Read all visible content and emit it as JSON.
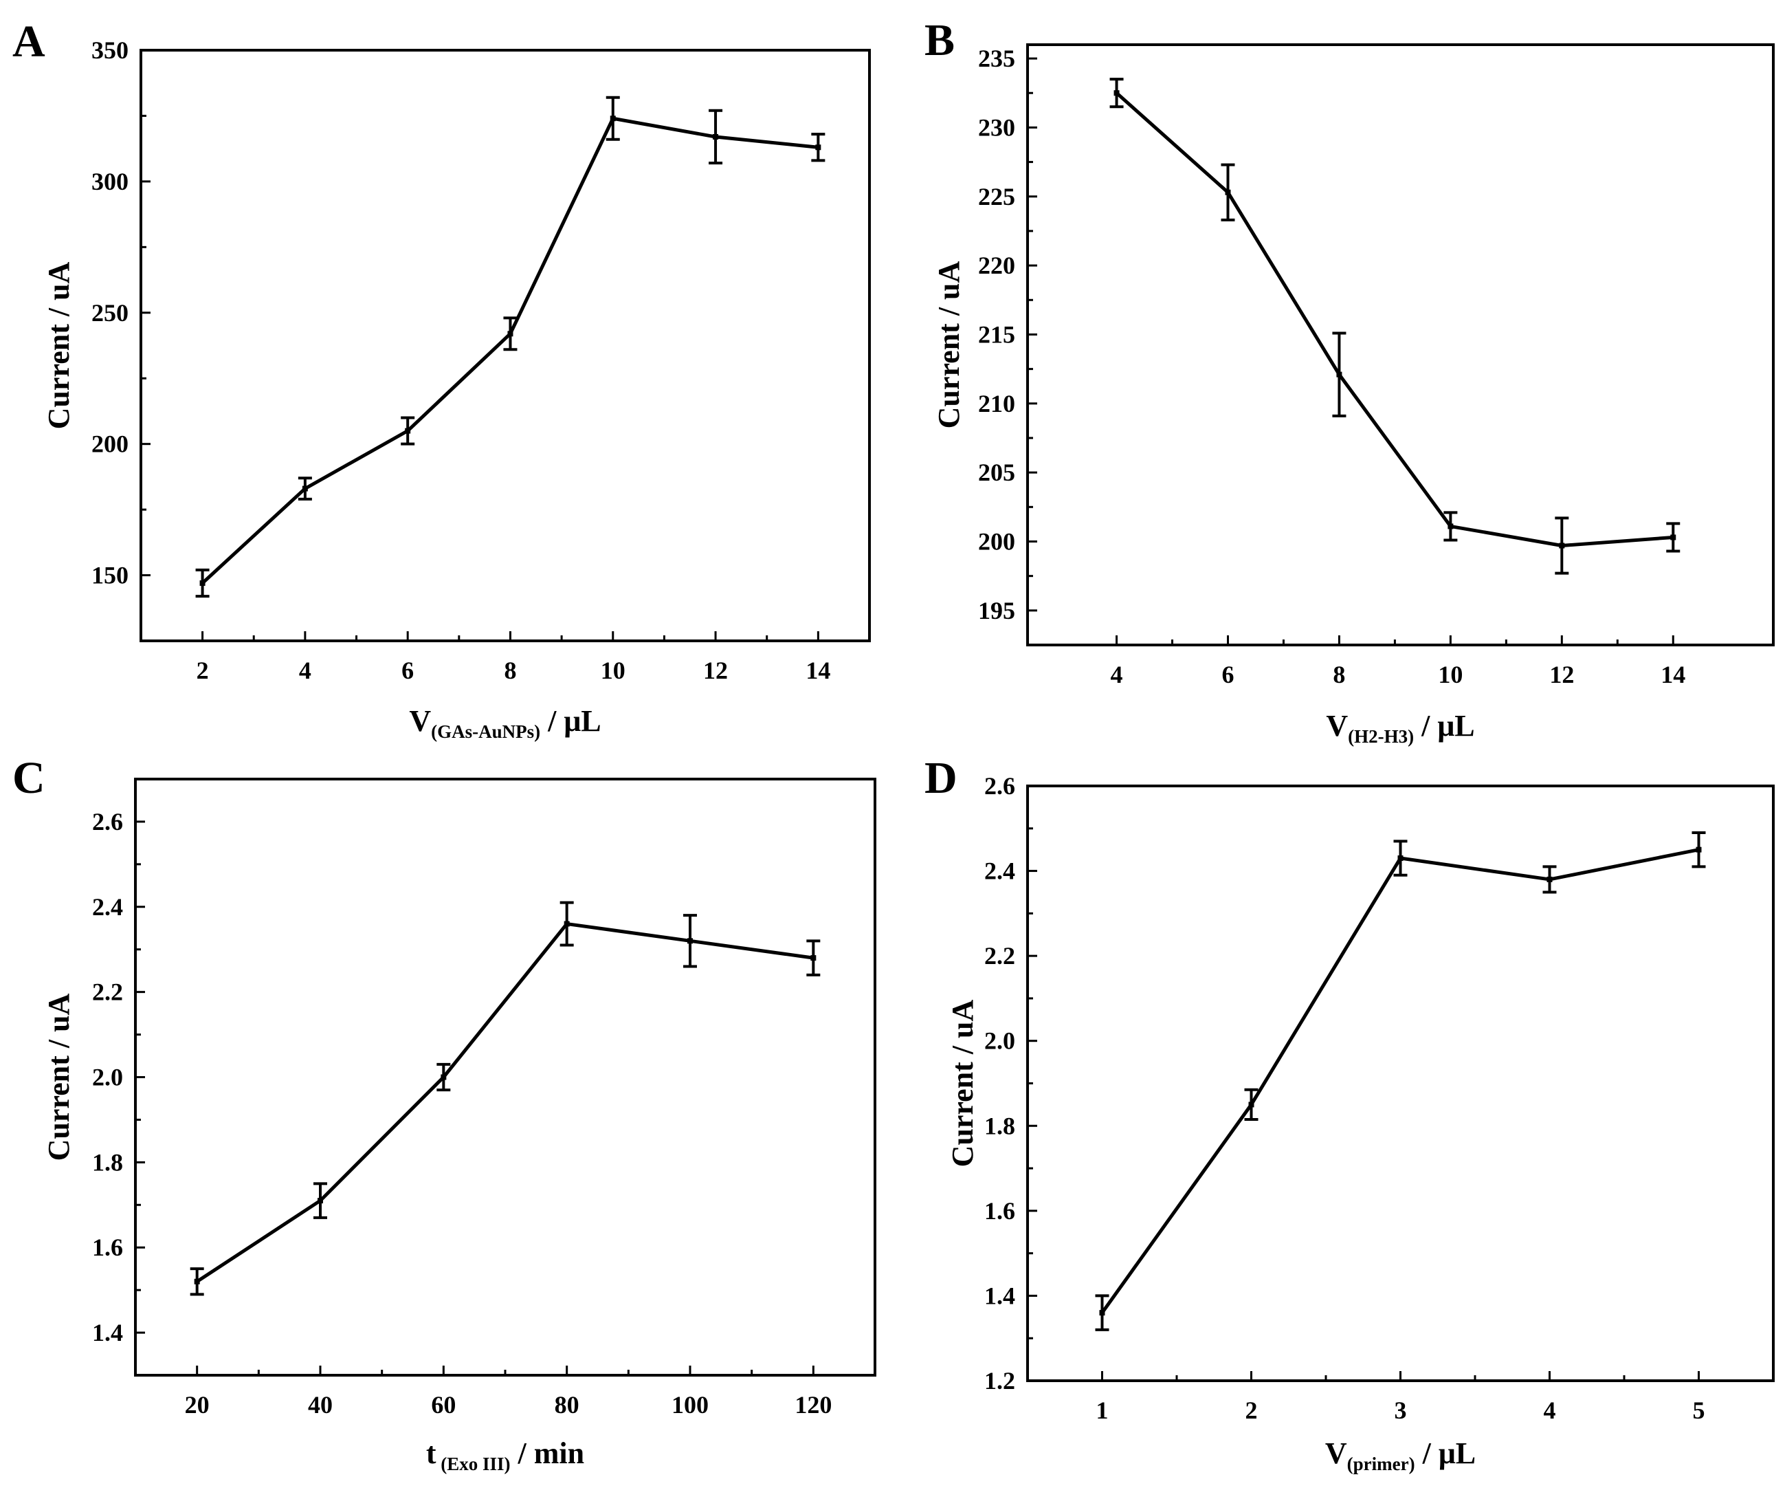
{
  "figure": {
    "panels": [
      "A",
      "B",
      "C",
      "D"
    ]
  },
  "chart_data": [
    {
      "panel": "A",
      "type": "line",
      "x": [
        2,
        4,
        6,
        8,
        10,
        12,
        14
      ],
      "y": [
        147,
        183,
        205,
        242,
        324,
        317,
        313
      ],
      "yerr": [
        5,
        4,
        5,
        6,
        8,
        10,
        5
      ],
      "xlim": [
        0.8,
        15
      ],
      "ylim": [
        125,
        350
      ],
      "xticks": [
        2,
        4,
        6,
        8,
        10,
        12,
        14
      ],
      "xtick_labels": [
        "2",
        "4",
        "6",
        "8",
        "10",
        "12",
        "14"
      ],
      "yticks": [
        150,
        200,
        250,
        300,
        350
      ],
      "ytick_labels": [
        "150",
        "200",
        "250",
        "300",
        "350"
      ],
      "ylabel": "Current / uA",
      "xlabel_main": "V",
      "xlabel_sub": "(GAs-AuNPs)",
      "xlabel_unit": " / μL"
    },
    {
      "panel": "B",
      "type": "line",
      "x": [
        4,
        6,
        8,
        10,
        12,
        14
      ],
      "y": [
        232.5,
        225.3,
        212.1,
        201.1,
        199.7,
        200.3
      ],
      "yerr": [
        1.0,
        2.0,
        3.0,
        1.0,
        2.0,
        1.0
      ],
      "xlim": [
        2.4,
        15.8
      ],
      "ylim": [
        192.5,
        236
      ],
      "xticks": [
        4,
        6,
        8,
        10,
        12,
        14
      ],
      "xtick_labels": [
        "4",
        "6",
        "8",
        "10",
        "12",
        "14"
      ],
      "yticks": [
        195,
        200,
        205,
        210,
        215,
        220,
        225,
        230,
        235
      ],
      "ytick_labels": [
        "195",
        "200",
        "205",
        "210",
        "215",
        "220",
        "225",
        "230",
        "235"
      ],
      "ylabel": "Current / uA",
      "xlabel_main": "V",
      "xlabel_sub": "(H2-H3)",
      "xlabel_unit": " / μL"
    },
    {
      "panel": "C",
      "type": "line",
      "x": [
        20,
        40,
        60,
        80,
        100,
        120
      ],
      "y": [
        1.52,
        1.71,
        2.0,
        2.36,
        2.32,
        2.28
      ],
      "yerr": [
        0.03,
        0.04,
        0.03,
        0.05,
        0.06,
        0.04
      ],
      "xlim": [
        10,
        130
      ],
      "ylim": [
        1.3,
        2.7
      ],
      "xticks": [
        20,
        40,
        60,
        80,
        100,
        120
      ],
      "xtick_labels": [
        "20",
        "40",
        "60",
        "80",
        "100",
        "120"
      ],
      "yticks": [
        1.4,
        1.6,
        1.8,
        2.0,
        2.2,
        2.4,
        2.6
      ],
      "ytick_labels": [
        "1.4",
        "1.6",
        "1.8",
        "2.0",
        "2.2",
        "2.4",
        "2.6"
      ],
      "ylabel": "Current / uA",
      "xlabel_main": "t",
      "xlabel_sub": " (Exo III)",
      "xlabel_unit": " / min"
    },
    {
      "panel": "D",
      "type": "line",
      "x": [
        1,
        2,
        3,
        4,
        5
      ],
      "y": [
        1.36,
        1.85,
        2.43,
        2.38,
        2.45
      ],
      "yerr": [
        0.04,
        0.035,
        0.04,
        0.03,
        0.04
      ],
      "xlim": [
        0.5,
        5.5
      ],
      "ylim": [
        1.2,
        2.6
      ],
      "xticks": [
        1,
        2,
        3,
        4,
        5
      ],
      "xtick_labels": [
        "1",
        "2",
        "3",
        "4",
        "5"
      ],
      "yticks": [
        1.2,
        1.4,
        1.6,
        1.8,
        2.0,
        2.2,
        2.4,
        2.6
      ],
      "ytick_labels": [
        "1.2",
        "1.4",
        "1.6",
        "1.8",
        "2.0",
        "2.2",
        "2.4",
        "2.6"
      ],
      "ylabel": "Current / uA",
      "xlabel_main": "V",
      "xlabel_sub": "(primer)",
      "xlabel_unit": " / μL"
    }
  ]
}
